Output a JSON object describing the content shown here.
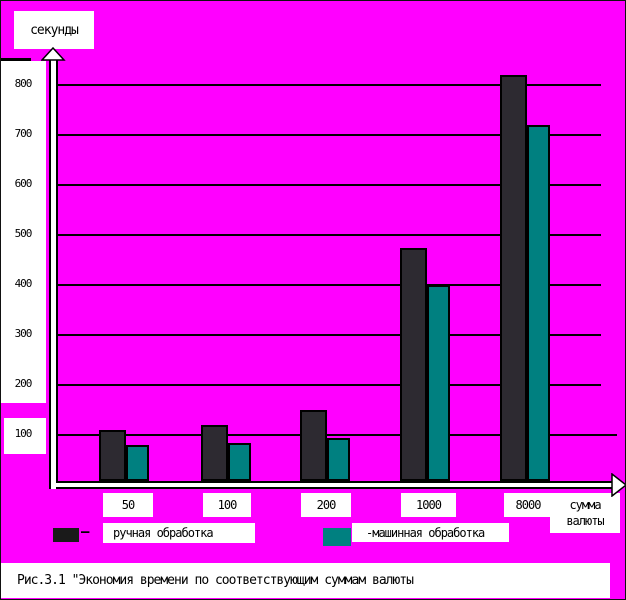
{
  "figure": {
    "y_axis_title": "секунды",
    "x_axis_title_line1": "сумма",
    "x_axis_title_line2": "валюты",
    "caption": "Рис.3.1 \"Экономия времени по соответствующим суммам валюты"
  },
  "legend": {
    "manual_dash": "–",
    "manual_label": "ручная обработка",
    "machine_label": "-машинная обработка",
    "manual_color": "#1a1a1a",
    "machine_color": "#008080"
  },
  "chart_data": {
    "type": "bar",
    "title": "Экономия времени по соответствующим суммам валюты",
    "categories": [
      "50",
      "100",
      "200",
      "1000",
      "8000"
    ],
    "series": [
      {
        "name": "ручная обработка",
        "color": "#2d2a31",
        "values": [
          110,
          120,
          150,
          475,
          820
        ]
      },
      {
        "name": "машинная обработка",
        "color": "#008080",
        "values": [
          80,
          85,
          95,
          400,
          720
        ]
      }
    ],
    "xlabel": "сумма валюты",
    "ylabel": "секунды",
    "yticks": [
      100,
      200,
      300,
      400,
      500,
      600,
      700,
      800
    ],
    "ylim": [
      0,
      860
    ],
    "grid": true,
    "legend_position": "bottom",
    "background_color": "#ff00ff"
  }
}
